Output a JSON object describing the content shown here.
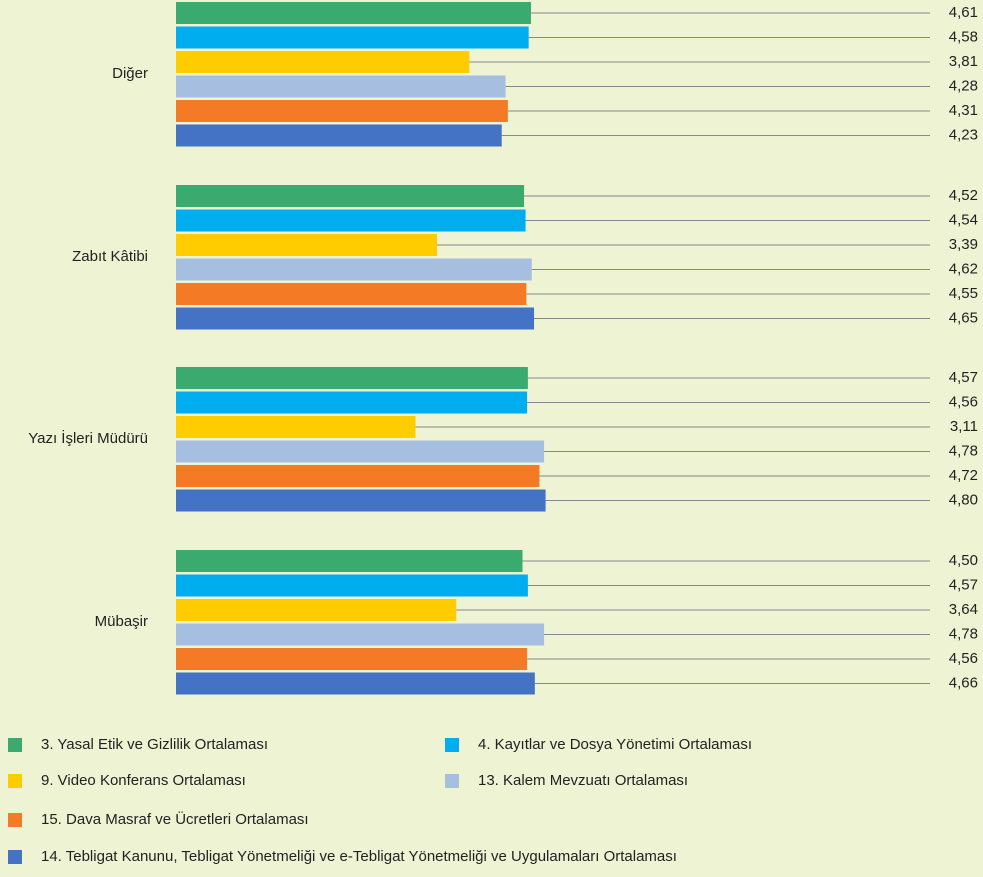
{
  "chart_data": {
    "type": "bar",
    "orientation": "horizontal",
    "categories": [
      "Diğer",
      "Zabıt Kâtibi",
      "Yazı İşleri Müdürü",
      "Mübaşir"
    ],
    "xlim": [
      0,
      6
    ],
    "series": [
      {
        "name": "3. Yasal Etik ve Gizlilik Ortalaması",
        "color": "#3aaa6e",
        "values": [
          4.61,
          4.52,
          4.57,
          4.5
        ],
        "value_labels": [
          "4,61",
          "4,52",
          "4,57",
          "4,50"
        ]
      },
      {
        "name": "4. Kayıtlar ve Dosya Yönetimi Ortalaması",
        "color": "#00aeef",
        "values": [
          4.58,
          4.54,
          4.56,
          4.57
        ],
        "value_labels": [
          "4,58",
          "4,54",
          "4,56",
          "4,57"
        ]
      },
      {
        "name": "9. Video Konferans Ortalaması",
        "color": "#ffcc00",
        "values": [
          3.81,
          3.39,
          3.11,
          3.64
        ],
        "value_labels": [
          "3,81",
          "3,39",
          "3,11",
          "3,64"
        ]
      },
      {
        "name": "13. Kalem Mevzuatı Ortalaması",
        "color": "#a6bfe0",
        "values": [
          4.28,
          4.62,
          4.78,
          4.78
        ],
        "value_labels": [
          "4,28",
          "4,62",
          "4,78",
          "4,78"
        ]
      },
      {
        "name": "15. Dava Masraf ve Ücretleri Ortalaması",
        "color": "#f47a26",
        "values": [
          4.31,
          4.55,
          4.72,
          4.56
        ],
        "value_labels": [
          "4,31",
          "4,55",
          "4,72",
          "4,56"
        ]
      },
      {
        "name": "14. Tebligat Kanunu, Tebligat Yönetmeliği ve e-Tebligat Yönetmeliği ve Uygulamaları Ortalaması",
        "color": "#4472c4",
        "values": [
          4.23,
          4.65,
          4.8,
          4.66
        ],
        "value_labels": [
          "4,23",
          "4,65",
          "4,80",
          "4,66"
        ]
      }
    ],
    "legend": "bottom"
  }
}
